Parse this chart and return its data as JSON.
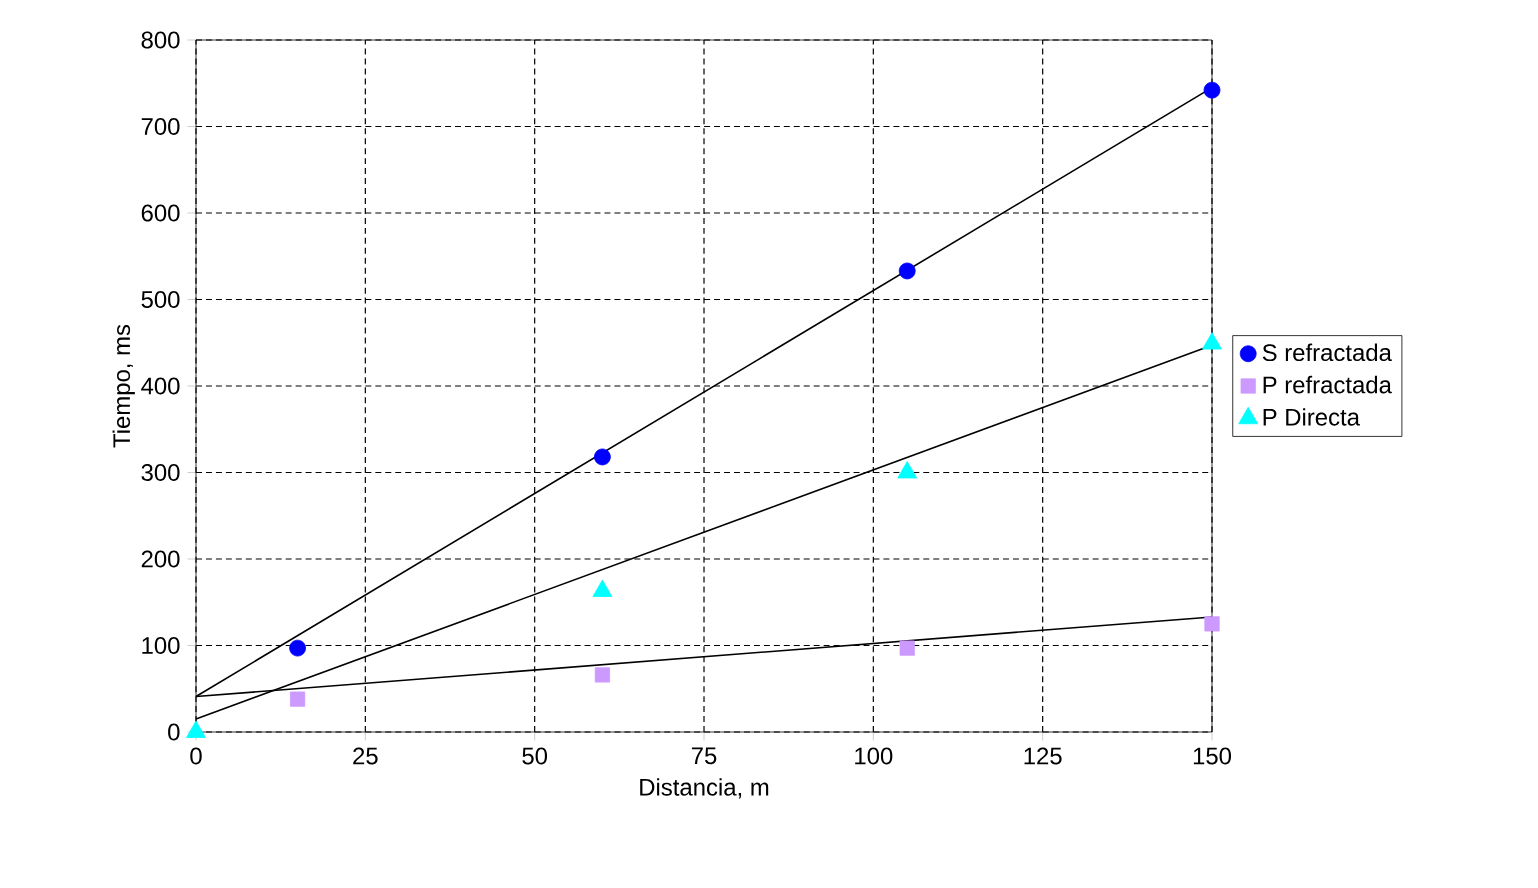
{
  "chart_data": {
    "type": "scatter",
    "xlabel": "Distancia, m",
    "ylabel": "Tiempo, ms",
    "xlim": [
      0,
      150
    ],
    "xticks": [
      0,
      25,
      50,
      75,
      100,
      125,
      150
    ],
    "ylim": [
      0,
      800
    ],
    "yticks": [
      0,
      100,
      200,
      300,
      400,
      500,
      600,
      700,
      800
    ],
    "grid": true,
    "legend": "right",
    "series": [
      {
        "name": "S refractada",
        "color": "#0000ff",
        "marker": "circle",
        "x": [
          15,
          60,
          105,
          150
        ],
        "values": [
          97,
          318,
          533,
          742
        ]
      },
      {
        "name": "P refractada",
        "color": "#cc99ff",
        "marker": "square",
        "x": [
          15,
          60,
          105,
          150
        ],
        "values": [
          38,
          66,
          97,
          125
        ]
      },
      {
        "name": "P Directa",
        "color": "#00ffff",
        "marker": "triangle",
        "x": [
          0,
          60,
          105,
          150
        ],
        "values": [
          0,
          163,
          300,
          449
        ]
      },
      {
        "type": "line",
        "color": "#000000",
        "marker": "none",
        "line_style": "solid",
        "x": [
          0,
          150
        ],
        "values": [
          41,
          745
        ]
      },
      {
        "type": "line",
        "color": "#000000",
        "marker": "none",
        "line_style": "solid",
        "x": [
          0,
          150
        ],
        "values": [
          41,
          133
        ]
      },
      {
        "type": "line",
        "color": "#000000",
        "marker": "none",
        "line_style": "solid",
        "x": [
          0,
          150
        ],
        "values": [
          15,
          447
        ]
      }
    ]
  }
}
